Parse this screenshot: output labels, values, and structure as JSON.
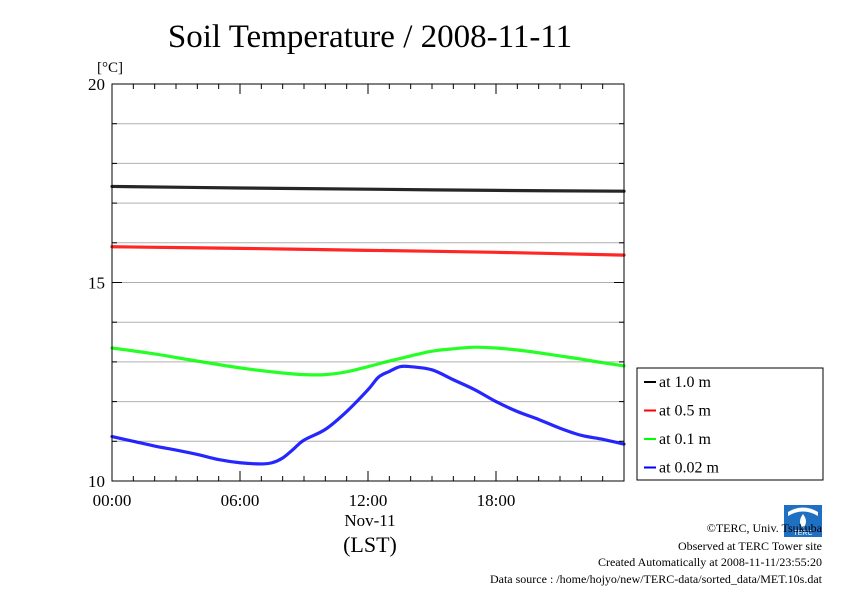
{
  "chart_data": {
    "type": "line",
    "title": "Soil Temperature / 2008-11-11",
    "ylabel": "[°C]",
    "xlabel": "(LST)",
    "date_label": "Nov-11",
    "ylim": [
      10,
      20
    ],
    "xlim": [
      0,
      24
    ],
    "y_ticks": [
      10,
      15,
      20
    ],
    "y_tick_labels": [
      "10",
      "15",
      "20"
    ],
    "y_gridlines": [
      11,
      12,
      13,
      14,
      16,
      17,
      18,
      19
    ],
    "x_ticks": [
      0,
      6,
      12,
      18
    ],
    "x_tick_labels": [
      "00:00",
      "06:00",
      "12:00",
      "18:00"
    ],
    "grid": true,
    "legend_position": "right",
    "series": [
      {
        "name": "at 1.0 m",
        "color": "#000000",
        "points": [
          [
            0,
            17.42
          ],
          [
            6,
            17.38
          ],
          [
            12,
            17.35
          ],
          [
            18,
            17.32
          ],
          [
            24,
            17.3
          ]
        ]
      },
      {
        "name": "at 0.5 m",
        "color": "#ff0000",
        "points": [
          [
            0,
            15.9
          ],
          [
            6,
            15.86
          ],
          [
            12,
            15.81
          ],
          [
            18,
            15.76
          ],
          [
            24,
            15.69
          ]
        ]
      },
      {
        "name": "at 0.1 m",
        "color": "#00ff00",
        "points": [
          [
            0,
            13.35
          ],
          [
            2,
            13.2
          ],
          [
            4,
            13.02
          ],
          [
            6,
            12.85
          ],
          [
            8,
            12.72
          ],
          [
            9,
            12.68
          ],
          [
            10,
            12.68
          ],
          [
            11,
            12.75
          ],
          [
            12,
            12.88
          ],
          [
            13,
            13.02
          ],
          [
            14,
            13.15
          ],
          [
            15,
            13.27
          ],
          [
            16,
            13.33
          ],
          [
            17,
            13.37
          ],
          [
            18,
            13.35
          ],
          [
            19,
            13.3
          ],
          [
            20,
            13.23
          ],
          [
            21,
            13.15
          ],
          [
            22,
            13.07
          ],
          [
            23,
            12.98
          ],
          [
            24,
            12.9
          ]
        ]
      },
      {
        "name": "at 0.02 m",
        "color": "#0000ff",
        "points": [
          [
            0,
            11.12
          ],
          [
            1,
            11.0
          ],
          [
            2,
            10.88
          ],
          [
            3,
            10.78
          ],
          [
            4,
            10.67
          ],
          [
            5,
            10.54
          ],
          [
            6,
            10.46
          ],
          [
            7,
            10.43
          ],
          [
            7.5,
            10.46
          ],
          [
            8,
            10.58
          ],
          [
            8.5,
            10.8
          ],
          [
            9,
            11.03
          ],
          [
            10,
            11.3
          ],
          [
            11,
            11.75
          ],
          [
            12,
            12.3
          ],
          [
            12.5,
            12.62
          ],
          [
            13,
            12.76
          ],
          [
            13.5,
            12.88
          ],
          [
            14,
            12.88
          ],
          [
            15,
            12.8
          ],
          [
            16,
            12.55
          ],
          [
            17,
            12.3
          ],
          [
            18,
            12.0
          ],
          [
            19,
            11.75
          ],
          [
            20,
            11.55
          ],
          [
            21,
            11.33
          ],
          [
            22,
            11.15
          ],
          [
            23,
            11.05
          ],
          [
            24,
            10.93
          ]
        ]
      }
    ]
  },
  "footer": {
    "copyright": "©TERC, Univ. Tsukuba",
    "observed": "Observed at TERC Tower site",
    "created": "Created Automatically at 2008-11-11/23:55:20",
    "source": "Data source : /home/hojyo/new/TERC-data/sorted_data/MET.10s.dat",
    "logo_text": "TERC"
  }
}
